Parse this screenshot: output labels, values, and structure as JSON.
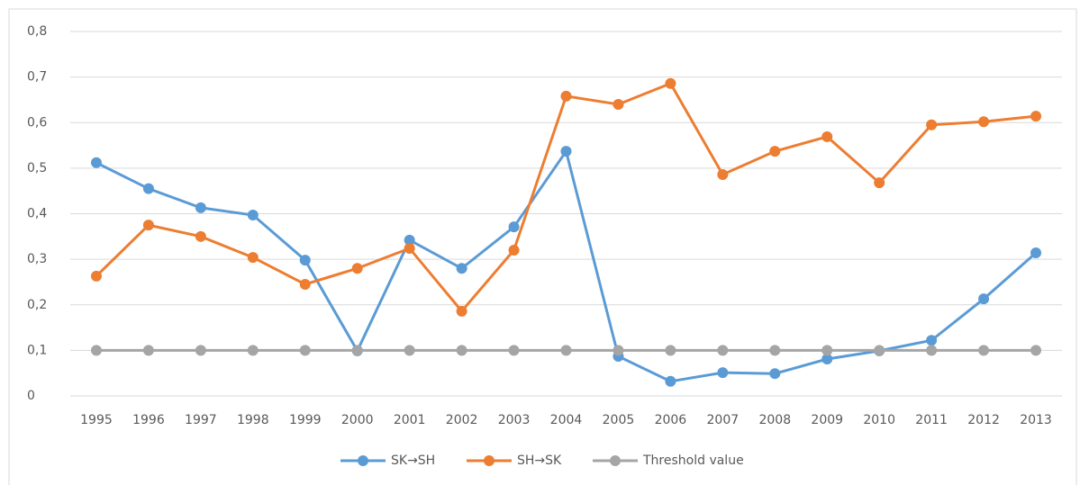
{
  "chart_data": {
    "type": "line",
    "categories": [
      "1995",
      "1996",
      "1997",
      "1998",
      "1999",
      "2000",
      "2001",
      "2002",
      "2003",
      "2004",
      "2005",
      "2006",
      "2007",
      "2008",
      "2009",
      "2010",
      "2011",
      "2012",
      "2013"
    ],
    "series": [
      {
        "name": "SK→SH",
        "color": "#5b9bd5",
        "values": [
          0.512,
          0.455,
          0.413,
          0.397,
          0.298,
          0.099,
          0.342,
          0.28,
          0.371,
          0.537,
          0.087,
          0.032,
          0.051,
          0.049,
          0.081,
          0.099,
          0.122,
          0.213,
          0.314
        ]
      },
      {
        "name": "SH→SK",
        "color": "#ed7d31",
        "values": [
          0.263,
          0.375,
          0.35,
          0.304,
          0.245,
          0.28,
          0.324,
          0.186,
          0.32,
          0.658,
          0.64,
          0.686,
          0.486,
          0.537,
          0.569,
          0.468,
          0.595,
          0.602,
          0.614
        ]
      },
      {
        "name": "Threshold value",
        "color": "#a5a5a5",
        "values": [
          0.1,
          0.1,
          0.1,
          0.1,
          0.1,
          0.1,
          0.1,
          0.1,
          0.1,
          0.1,
          0.1,
          0.1,
          0.1,
          0.1,
          0.1,
          0.1,
          0.1,
          0.1,
          0.1
        ]
      }
    ],
    "ylim": [
      0,
      0.8
    ],
    "yticks": [
      0,
      {
        "value": 0.1,
        "label": "0,1"
      },
      {
        "value": 0.2,
        "label": "0,2"
      },
      {
        "value": 0.3,
        "label": "0,3"
      },
      {
        "value": 0.4,
        "label": "0,4"
      },
      {
        "value": 0.5,
        "label": "0,5"
      },
      {
        "value": 0.6,
        "label": "0,6"
      },
      {
        "value": 0.7,
        "label": "0,7"
      },
      {
        "value": 0.8,
        "label": "0,8"
      }
    ],
    "grid": true,
    "legend": "bottom"
  }
}
